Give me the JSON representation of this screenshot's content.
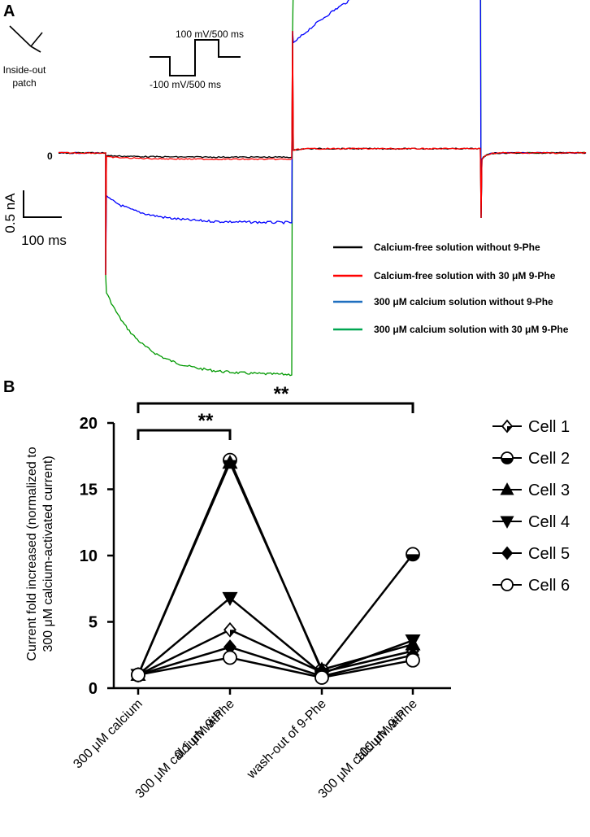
{
  "panel_a": {
    "label": "A",
    "patch_label": [
      "Inside-out",
      "patch"
    ],
    "protocol_high": "100 mV/500 ms",
    "protocol_low": "-100 mV/500 ms",
    "zero_label": "0",
    "scale_y": "0.5 nA",
    "scale_x": "100 ms",
    "traces": [
      {
        "name": "Calcium-free solution without 9-Phe",
        "color": "#000000",
        "neg": -0.02,
        "pos": 0.02
      },
      {
        "name": "Calcium-free solution with 30 μM 9-Phe",
        "color": "#ff0000",
        "neg": -0.03,
        "pos": 0.02
      },
      {
        "name": "300 μM calcium solution without 9-Phe",
        "color": "#0000ff",
        "neg": -0.33,
        "pos": 1.07
      },
      {
        "name": "300 μM calcium solution with 30 μM 9-Phe",
        "color": "#009900",
        "neg": -1.05,
        "pos": 1.68
      }
    ],
    "legend_colors": [
      "#000000",
      "#ff0000",
      "#1f6fbf",
      "#00a651"
    ]
  },
  "chart_data": {
    "type": "line",
    "panel_label": "B",
    "title": "",
    "ylabel": [
      "Current fold increased  (normalized to",
      "300 μM calcium-activated current)"
    ],
    "xlabel": "",
    "ylim": [
      0,
      20
    ],
    "yticks": [
      0,
      5,
      10,
      15,
      20
    ],
    "categories": [
      [
        "300 μM calcium"
      ],
      [
        "300 μM calcium with",
        "0.1 μM 9-Phe"
      ],
      [
        "wash-out of 9-Phe"
      ],
      [
        "300 μM calcium with",
        "100 μM 9-Phe"
      ]
    ],
    "series": [
      {
        "name": "Cell 1",
        "marker": "diamond-open",
        "values": [
          1.0,
          4.4,
          1.2,
          2.8
        ]
      },
      {
        "name": "Cell 2",
        "marker": "circle-half",
        "values": [
          1.0,
          17.2,
          1.3,
          10.1
        ]
      },
      {
        "name": "Cell 3",
        "marker": "triangle-up",
        "values": [
          1.0,
          17.0,
          1.4,
          3.3
        ]
      },
      {
        "name": "Cell 4",
        "marker": "triangle-down",
        "values": [
          1.0,
          6.8,
          1.1,
          3.6
        ]
      },
      {
        "name": "Cell 5",
        "marker": "diamond-filled",
        "values": [
          1.0,
          3.1,
          0.9,
          2.5
        ]
      },
      {
        "name": "Cell 6",
        "marker": "circle-open",
        "values": [
          1.0,
          2.3,
          0.8,
          2.1
        ]
      }
    ],
    "significance": [
      {
        "from": 0,
        "to": 1,
        "label": "**"
      },
      {
        "from": 0,
        "to": 3,
        "label": "**"
      }
    ]
  }
}
